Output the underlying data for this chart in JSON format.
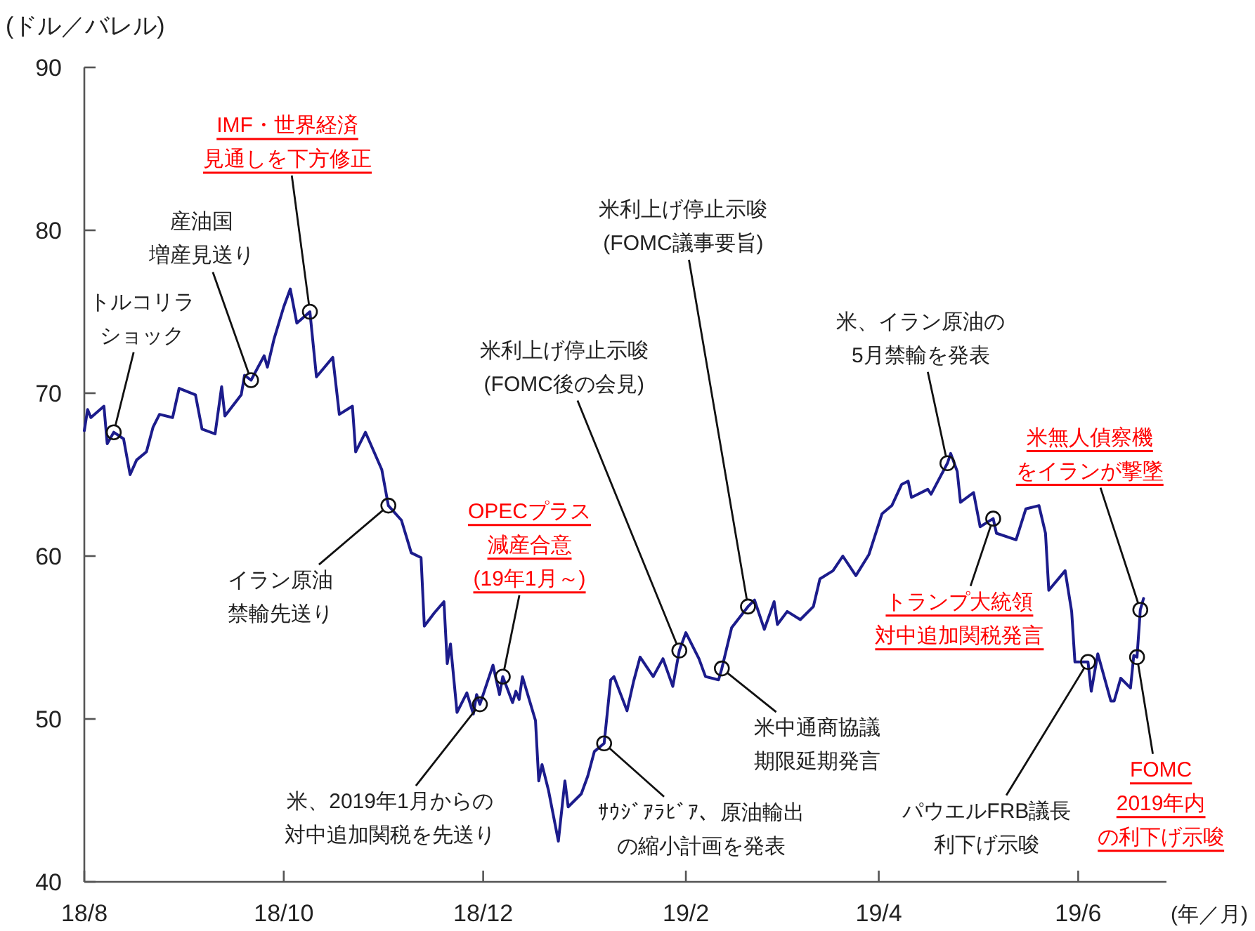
{
  "chart_data": {
    "type": "line",
    "ylabel": "(ドル／バレル)",
    "xlabel": "(年／月)",
    "xlim": [
      "2018-08-01",
      "2019-06-28"
    ],
    "ylim": [
      40,
      90
    ],
    "xticks": [
      {
        "value": "2018-08-01",
        "label": "18/8"
      },
      {
        "value": "2018-10-01",
        "label": "18/10"
      },
      {
        "value": "2018-12-01",
        "label": "18/12"
      },
      {
        "value": "2019-02-01",
        "label": "19/2"
      },
      {
        "value": "2019-04-01",
        "label": "19/4"
      },
      {
        "value": "2019-06-01",
        "label": "19/6"
      }
    ],
    "yticks": [
      40,
      50,
      60,
      70,
      80,
      90
    ],
    "series": [
      {
        "color": "#1c1c8c",
        "x": [
          "2018-08-01",
          "2018-08-02",
          "2018-08-03",
          "2018-08-07",
          "2018-08-08",
          "2018-08-10",
          "2018-08-13",
          "2018-08-15",
          "2018-08-17",
          "2018-08-20",
          "2018-08-22",
          "2018-08-24",
          "2018-08-28",
          "2018-08-30",
          "2018-09-04",
          "2018-09-06",
          "2018-09-10",
          "2018-09-12",
          "2018-09-13",
          "2018-09-18",
          "2018-09-19",
          "2018-09-21",
          "2018-09-25",
          "2018-09-26",
          "2018-09-28",
          "2018-10-01",
          "2018-10-03",
          "2018-10-05",
          "2018-10-09",
          "2018-10-11",
          "2018-10-16",
          "2018-10-18",
          "2018-10-22",
          "2018-10-23",
          "2018-10-26",
          "2018-10-31",
          "2018-11-02",
          "2018-11-06",
          "2018-11-09",
          "2018-11-12",
          "2018-11-13",
          "2018-11-16",
          "2018-11-19",
          "2018-11-20",
          "2018-11-21",
          "2018-11-23",
          "2018-11-26",
          "2018-11-28",
          "2018-11-29",
          "2018-11-30",
          "2018-12-04",
          "2018-12-06",
          "2018-12-07",
          "2018-12-10",
          "2018-12-11",
          "2018-12-12",
          "2018-12-13",
          "2018-12-17",
          "2018-12-18",
          "2018-12-19",
          "2018-12-21",
          "2018-12-24",
          "2018-12-26",
          "2018-12-27",
          "2018-12-31",
          "2019-01-02",
          "2019-01-04",
          "2019-01-07",
          "2019-01-09",
          "2019-01-10",
          "2019-01-14",
          "2019-01-16",
          "2019-01-18",
          "2019-01-22",
          "2019-01-25",
          "2019-01-28",
          "2019-01-30",
          "2019-02-01",
          "2019-02-05",
          "2019-02-07",
          "2019-02-11",
          "2019-02-12",
          "2019-02-15",
          "2019-02-20",
          "2019-02-22",
          "2019-02-25",
          "2019-02-28",
          "2019-03-01",
          "2019-03-04",
          "2019-03-08",
          "2019-03-12",
          "2019-03-14",
          "2019-03-18",
          "2019-03-21",
          "2019-03-25",
          "2019-03-29",
          "2019-04-02",
          "2019-04-05",
          "2019-04-08",
          "2019-04-10",
          "2019-04-11",
          "2019-04-16",
          "2019-04-17",
          "2019-04-22",
          "2019-04-23",
          "2019-04-25",
          "2019-04-26",
          "2019-04-30",
          "2019-05-02",
          "2019-05-06",
          "2019-05-07",
          "2019-05-13",
          "2019-05-16",
          "2019-05-20",
          "2019-05-22",
          "2019-05-23",
          "2019-05-28",
          "2019-05-30",
          "2019-05-31",
          "2019-06-04",
          "2019-06-05",
          "2019-06-07",
          "2019-06-11",
          "2019-06-12",
          "2019-06-14",
          "2019-06-17",
          "2019-06-18",
          "2019-06-19",
          "2019-06-20",
          "2019-06-21"
        ],
        "values": [
          67.7,
          69.0,
          68.5,
          69.2,
          66.9,
          67.6,
          67.2,
          65.0,
          65.9,
          66.4,
          67.9,
          68.7,
          68.5,
          70.3,
          69.9,
          67.8,
          67.5,
          70.4,
          68.6,
          69.9,
          71.1,
          70.8,
          72.3,
          71.6,
          73.3,
          75.3,
          76.4,
          74.3,
          75.0,
          71.0,
          72.2,
          68.7,
          69.2,
          66.4,
          67.6,
          65.3,
          63.1,
          62.2,
          60.2,
          59.9,
          55.7,
          56.5,
          57.2,
          53.4,
          54.6,
          50.4,
          51.6,
          50.3,
          51.5,
          50.9,
          53.3,
          51.5,
          52.6,
          51.0,
          51.7,
          51.2,
          52.6,
          49.9,
          46.2,
          47.2,
          45.6,
          42.5,
          46.2,
          44.6,
          45.4,
          46.5,
          48.0,
          48.5,
          52.4,
          52.6,
          50.5,
          52.3,
          53.8,
          52.6,
          53.7,
          52.0,
          54.2,
          55.3,
          53.7,
          52.6,
          52.4,
          53.1,
          55.6,
          56.9,
          57.3,
          55.5,
          57.2,
          55.8,
          56.6,
          56.1,
          56.9,
          58.6,
          59.1,
          60.0,
          58.8,
          60.1,
          62.6,
          63.1,
          64.4,
          64.6,
          63.6,
          64.1,
          63.8,
          65.7,
          66.3,
          65.2,
          63.3,
          63.9,
          61.8,
          62.3,
          61.4,
          61.0,
          62.9,
          63.1,
          61.4,
          57.9,
          59.1,
          56.6,
          53.5,
          53.5,
          51.7,
          54.0,
          51.1,
          51.1,
          52.5,
          51.9,
          53.9,
          53.8,
          56.7,
          57.4
        ]
      }
    ],
    "annotations": [
      {
        "text": "トルコリラショック",
        "x": "2018-08-10",
        "y": 67.6
      },
      {
        "text": "産油国増産見送り",
        "x": "2018-09-21",
        "y": 70.8
      },
      {
        "text": "IMF・世界経済見通しを下方修正",
        "x": "2018-10-09",
        "y": 75.0
      },
      {
        "text": "イラン原油禁輸先送り",
        "x": "2018-11-02",
        "y": 63.1
      },
      {
        "text": "米、2019年1月からの対中追加関税を先送り",
        "x": "2018-11-30",
        "y": 50.9
      },
      {
        "text": "OPECプラス減産合意(19年1月～)",
        "x": "2018-12-07",
        "y": 52.6
      },
      {
        "text": "ｻｳｼﾞｱﾗﾋﾞｱ、原油輸出の縮小計画を発表",
        "x": "2019-01-07",
        "y": 48.5
      },
      {
        "text": "米利上げ停止示唆(FOMC後の会見)",
        "x": "2019-01-30",
        "y": 54.2
      },
      {
        "text": "米中通商協議期限延期発言",
        "x": "2019-02-12",
        "y": 53.1
      },
      {
        "text": "米利上げ停止示唆(FOMC議事要旨)",
        "x": "2019-02-20",
        "y": 56.9
      },
      {
        "text": "米、イラン原油の5月禁輸を発表",
        "x": "2019-04-22",
        "y": 65.7
      },
      {
        "text": "トランプ大統領対中追加関税発言",
        "x": "2019-05-06",
        "y": 62.3
      },
      {
        "text": "パウエルFRB議長利下げ示唆",
        "x": "2019-06-04",
        "y": 53.5
      },
      {
        "text": "米無人偵察機をイランが撃墜",
        "x": "2019-06-20",
        "y": 56.7
      },
      {
        "text": "FOMC2019年内の利下げ示唆",
        "x": "2019-06-19",
        "y": 53.8
      }
    ]
  }
}
